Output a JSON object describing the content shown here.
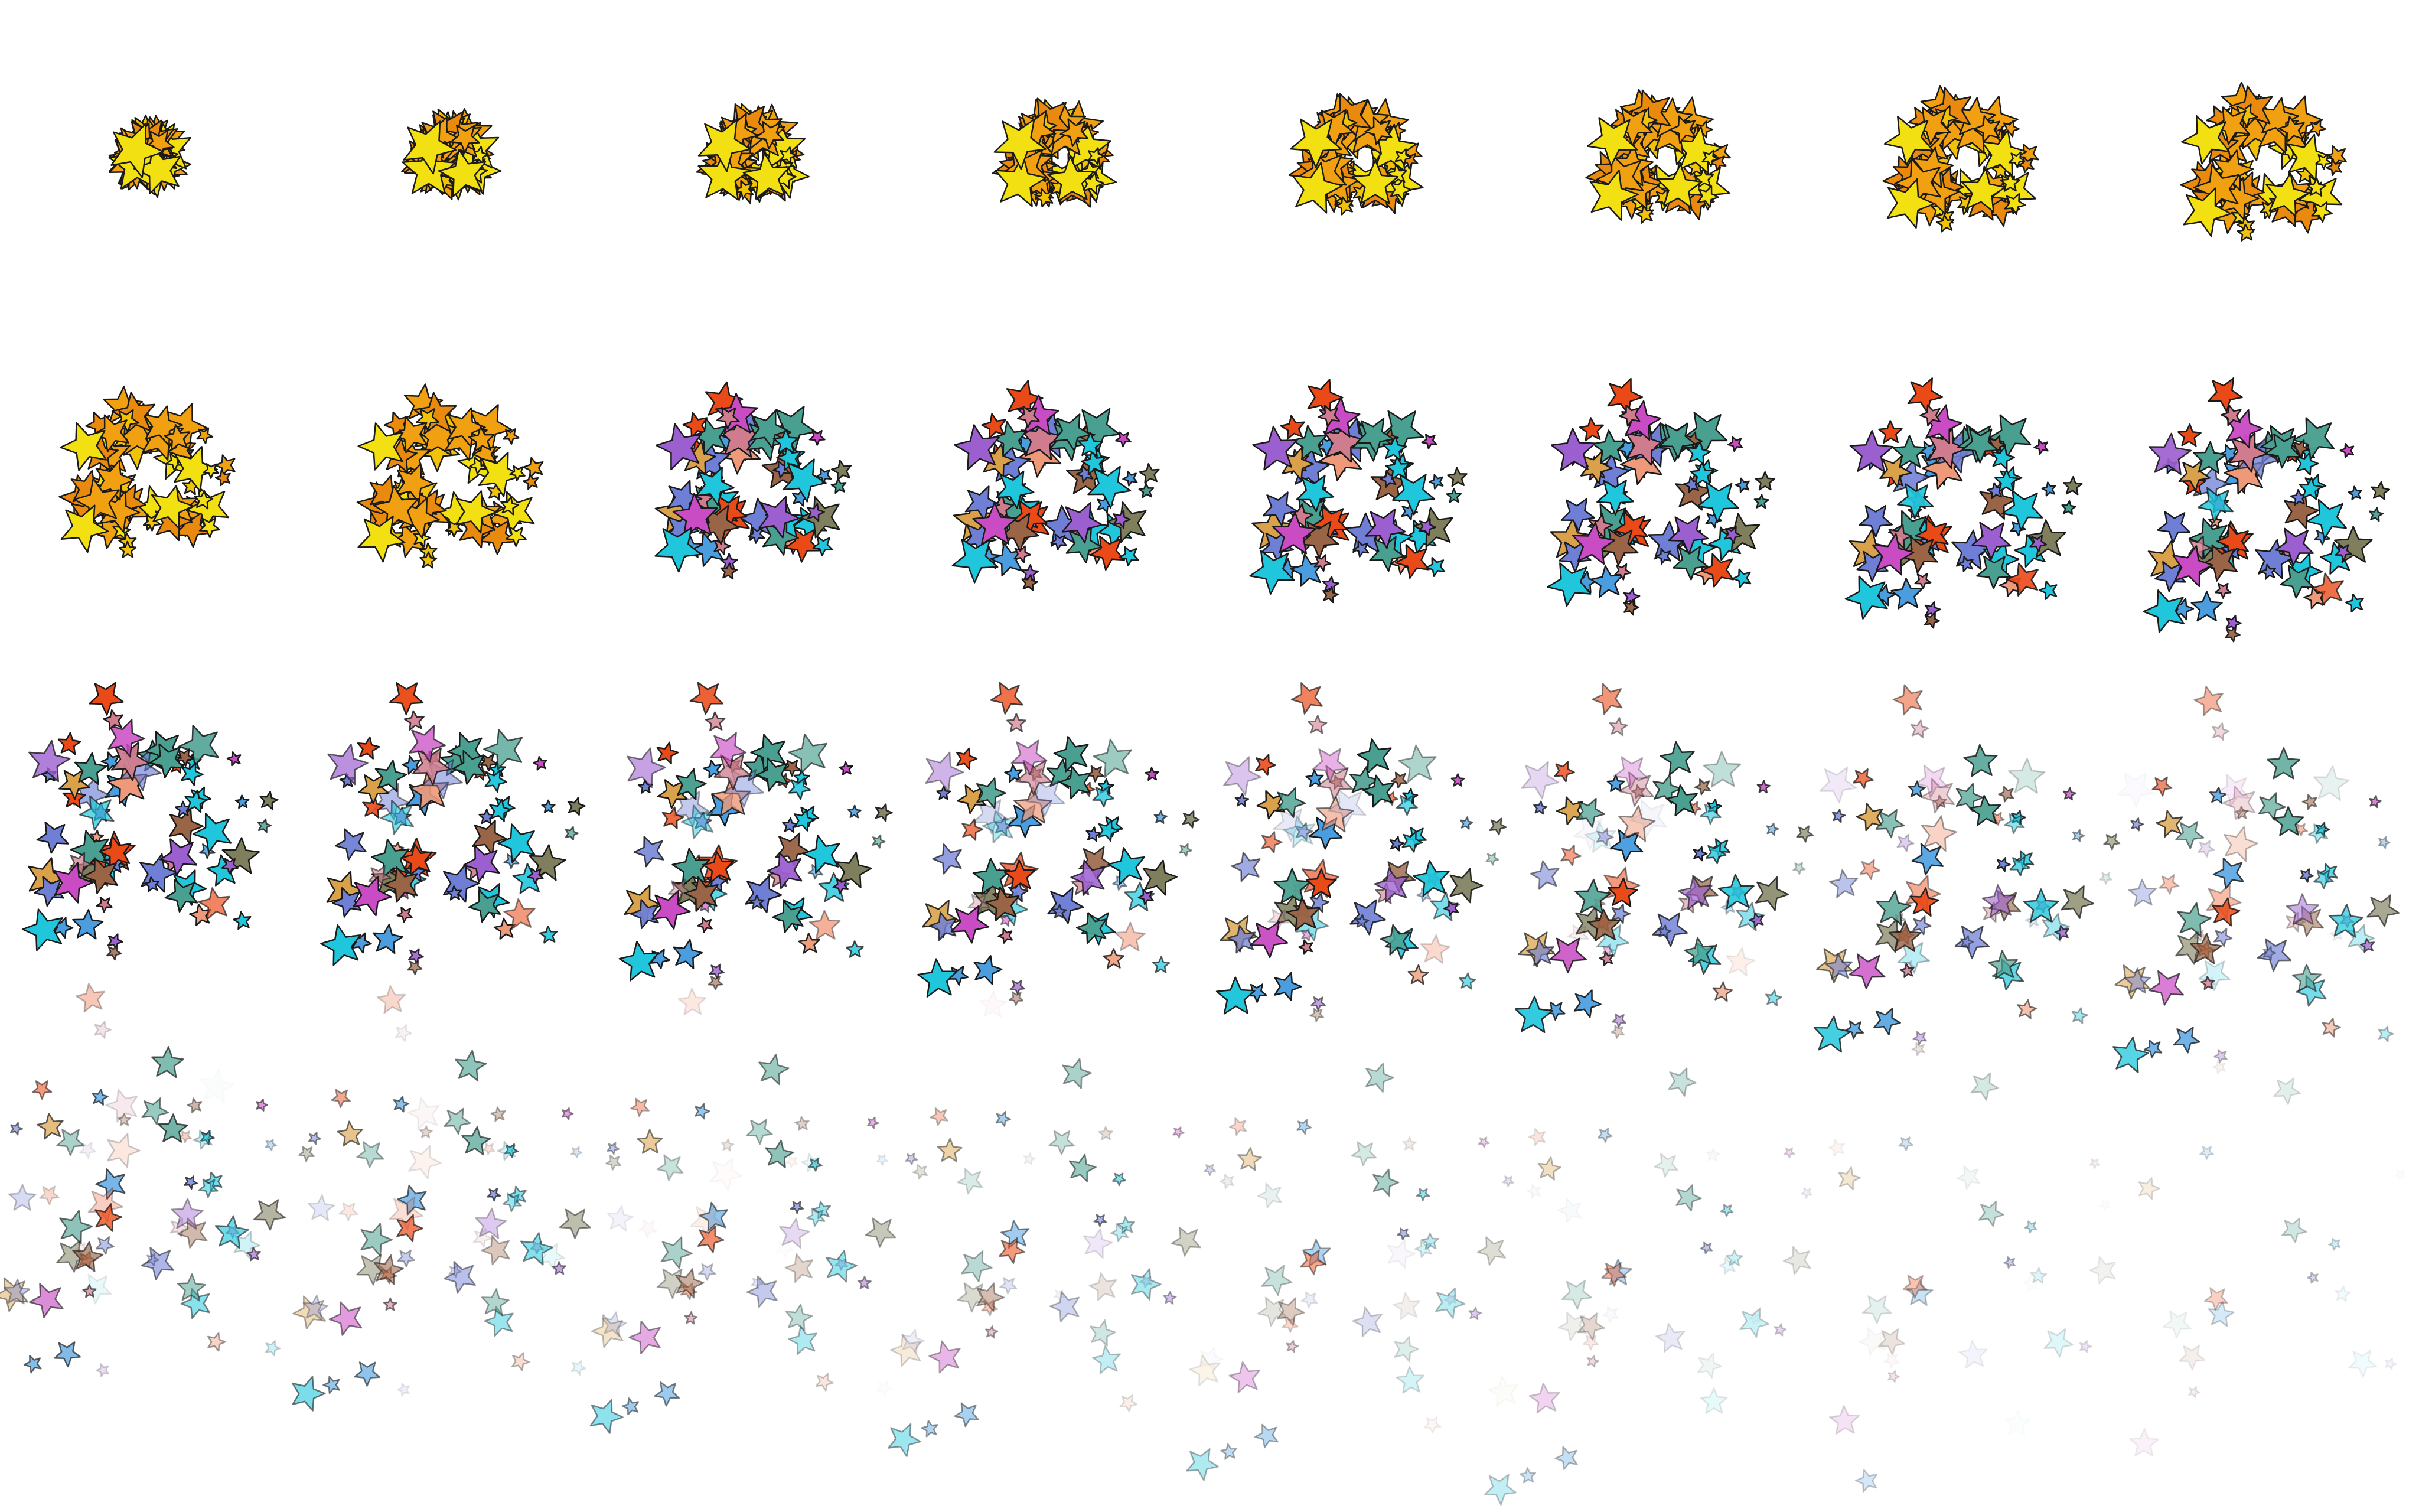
{
  "sprite_sheet": {
    "subject": "star-burst-particle-animation",
    "columns": 8,
    "rows": 4,
    "frame_count": 32,
    "background_color": "#ffffff",
    "outline_color": "#1a1a1a",
    "palette": {
      "gold": "#f0c20a",
      "amber": "#f0a010",
      "orange": "#e98a0f",
      "yellow": "#f2e012",
      "tan": "#d9a24a",
      "rose": "#cf7d8e",
      "magenta": "#c94cc4",
      "violet": "#9c5fd0",
      "periwinkle": "#6f7fd6",
      "sky": "#4a9ee0",
      "cyan": "#1fc6dc",
      "teal": "#4aa090",
      "olive": "#7f7f5e",
      "brown": "#9a6446",
      "vermilion": "#ea4a18",
      "salmon": "#ee9a7a"
    }
  }
}
